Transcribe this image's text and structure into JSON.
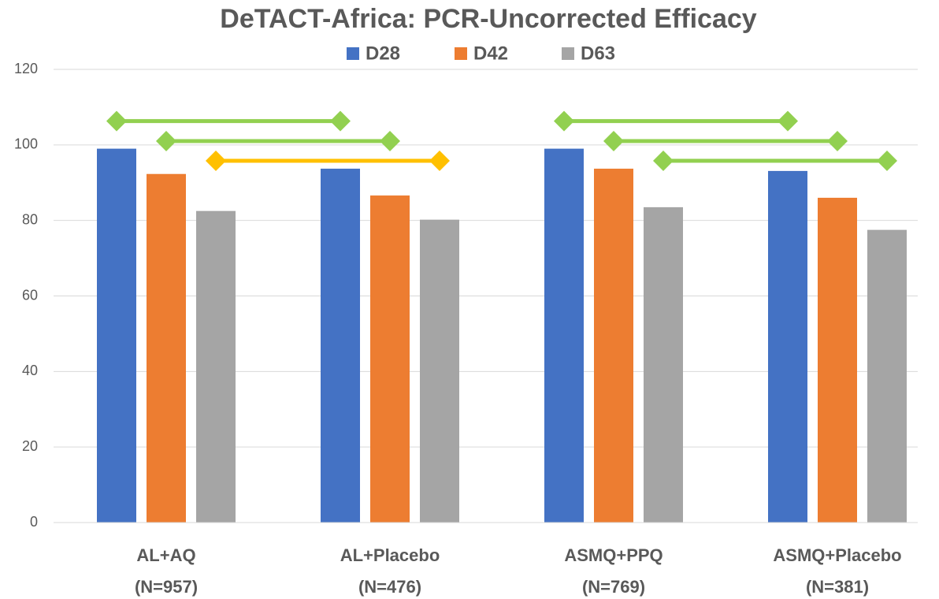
{
  "chart_data": {
    "type": "bar",
    "title": "DeTACT-Africa: PCR-Uncorrected Efficacy",
    "categories": [
      [
        "AL+AQ",
        "(N=957)"
      ],
      [
        "AL+Placebo",
        "(N=476)"
      ],
      [
        "ASMQ+PPQ",
        "(N=769)"
      ],
      [
        "ASMQ+Placebo",
        "(N=381)"
      ]
    ],
    "series": [
      {
        "name": "D28",
        "color": "#4472c4",
        "values": [
          99,
          93.7,
          99,
          93.1
        ]
      },
      {
        "name": "D42",
        "color": "#ed7d31",
        "values": [
          92.3,
          86.6,
          93.7,
          86
        ]
      },
      {
        "name": "D63",
        "color": "#a5a5a5",
        "values": [
          82.5,
          80.2,
          83.5,
          77.5
        ]
      }
    ],
    "brackets": [
      {
        "from": 0,
        "to": 1,
        "series": 0,
        "y": 106.3,
        "color": "#92d050"
      },
      {
        "from": 0,
        "to": 1,
        "series": 1,
        "y": 101,
        "color": "#92d050"
      },
      {
        "from": 0,
        "to": 1,
        "series": 2,
        "y": 95.8,
        "color": "#ffc000"
      },
      {
        "from": 2,
        "to": 3,
        "series": 0,
        "y": 106.3,
        "color": "#92d050"
      },
      {
        "from": 2,
        "to": 3,
        "series": 1,
        "y": 101,
        "color": "#92d050"
      },
      {
        "from": 2,
        "to": 3,
        "series": 2,
        "y": 95.8,
        "color": "#92d050"
      }
    ],
    "ylim": [
      0,
      120
    ],
    "yticks": [
      0,
      20,
      40,
      60,
      80,
      100,
      120
    ],
    "grid": true,
    "legend": "top"
  }
}
